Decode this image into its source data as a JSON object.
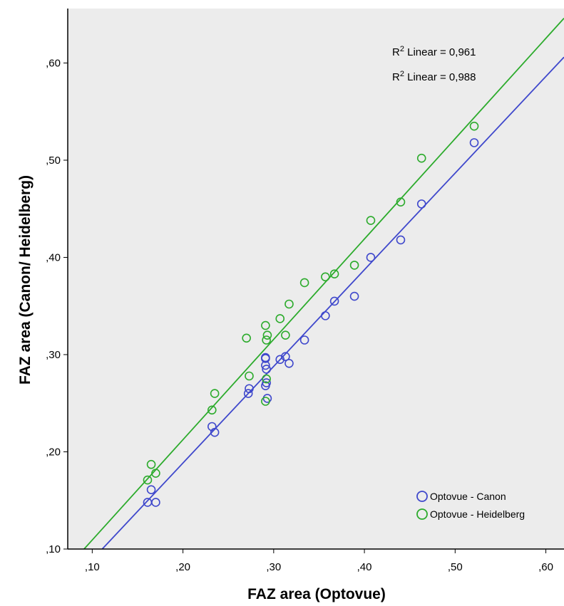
{
  "chart_data": {
    "type": "scatter",
    "title": "",
    "xlabel": "FAZ area (Optovue)",
    "ylabel": "FAZ area (Canon/ Heidelberg)",
    "xlim": [
      0.073,
      0.62
    ],
    "ylim": [
      0.1,
      0.656
    ],
    "x_ticks": [
      0.1,
      0.2,
      0.3,
      0.4,
      0.5,
      0.6
    ],
    "x_tick_labels": [
      ",10",
      ",20",
      ",30",
      ",40",
      ",50",
      ",60"
    ],
    "y_ticks": [
      0.1,
      0.2,
      0.3,
      0.4,
      0.5,
      0.6
    ],
    "y_tick_labels": [
      ",10",
      ",20",
      ",30",
      ",40",
      ",50",
      ",60"
    ],
    "grid": false,
    "legend_position": "bottom-right",
    "plot_background": "#ececec",
    "annotations": [
      {
        "prefix": "R",
        "sup": "2",
        "text": " Linear = 0,961"
      },
      {
        "prefix": "R",
        "sup": "2",
        "text": " Linear = 0,988"
      }
    ],
    "series": [
      {
        "name": "Optovue - Canon",
        "color": "#3f48cc",
        "fit_line": [
          [
            0.111,
            0.1
          ],
          [
            0.62,
            0.606
          ]
        ],
        "points": [
          [
            0.161,
            0.148
          ],
          [
            0.165,
            0.161
          ],
          [
            0.17,
            0.148
          ],
          [
            0.232,
            0.226
          ],
          [
            0.235,
            0.22
          ],
          [
            0.272,
            0.26
          ],
          [
            0.273,
            0.265
          ],
          [
            0.291,
            0.297
          ],
          [
            0.291,
            0.296
          ],
          [
            0.291,
            0.289
          ],
          [
            0.291,
            0.268
          ],
          [
            0.292,
            0.271
          ],
          [
            0.292,
            0.285
          ],
          [
            0.293,
            0.255
          ],
          [
            0.307,
            0.295
          ],
          [
            0.313,
            0.298
          ],
          [
            0.317,
            0.291
          ],
          [
            0.334,
            0.315
          ],
          [
            0.357,
            0.34
          ],
          [
            0.367,
            0.355
          ],
          [
            0.389,
            0.36
          ],
          [
            0.407,
            0.4
          ],
          [
            0.44,
            0.418
          ],
          [
            0.463,
            0.455
          ],
          [
            0.521,
            0.518
          ]
        ]
      },
      {
        "name": "Optovue - Heidelberg",
        "color": "#2cab2c",
        "fit_line": [
          [
            0.091,
            0.1
          ],
          [
            0.62,
            0.646
          ]
        ],
        "points": [
          [
            0.161,
            0.171
          ],
          [
            0.165,
            0.187
          ],
          [
            0.17,
            0.178
          ],
          [
            0.232,
            0.243
          ],
          [
            0.235,
            0.26
          ],
          [
            0.27,
            0.317
          ],
          [
            0.273,
            0.278
          ],
          [
            0.291,
            0.33
          ],
          [
            0.291,
            0.252
          ],
          [
            0.292,
            0.275
          ],
          [
            0.292,
            0.315
          ],
          [
            0.293,
            0.32
          ],
          [
            0.307,
            0.337
          ],
          [
            0.313,
            0.32
          ],
          [
            0.317,
            0.352
          ],
          [
            0.334,
            0.374
          ],
          [
            0.357,
            0.38
          ],
          [
            0.367,
            0.383
          ],
          [
            0.389,
            0.392
          ],
          [
            0.407,
            0.438
          ],
          [
            0.44,
            0.457
          ],
          [
            0.463,
            0.502
          ],
          [
            0.521,
            0.535
          ]
        ]
      }
    ]
  }
}
